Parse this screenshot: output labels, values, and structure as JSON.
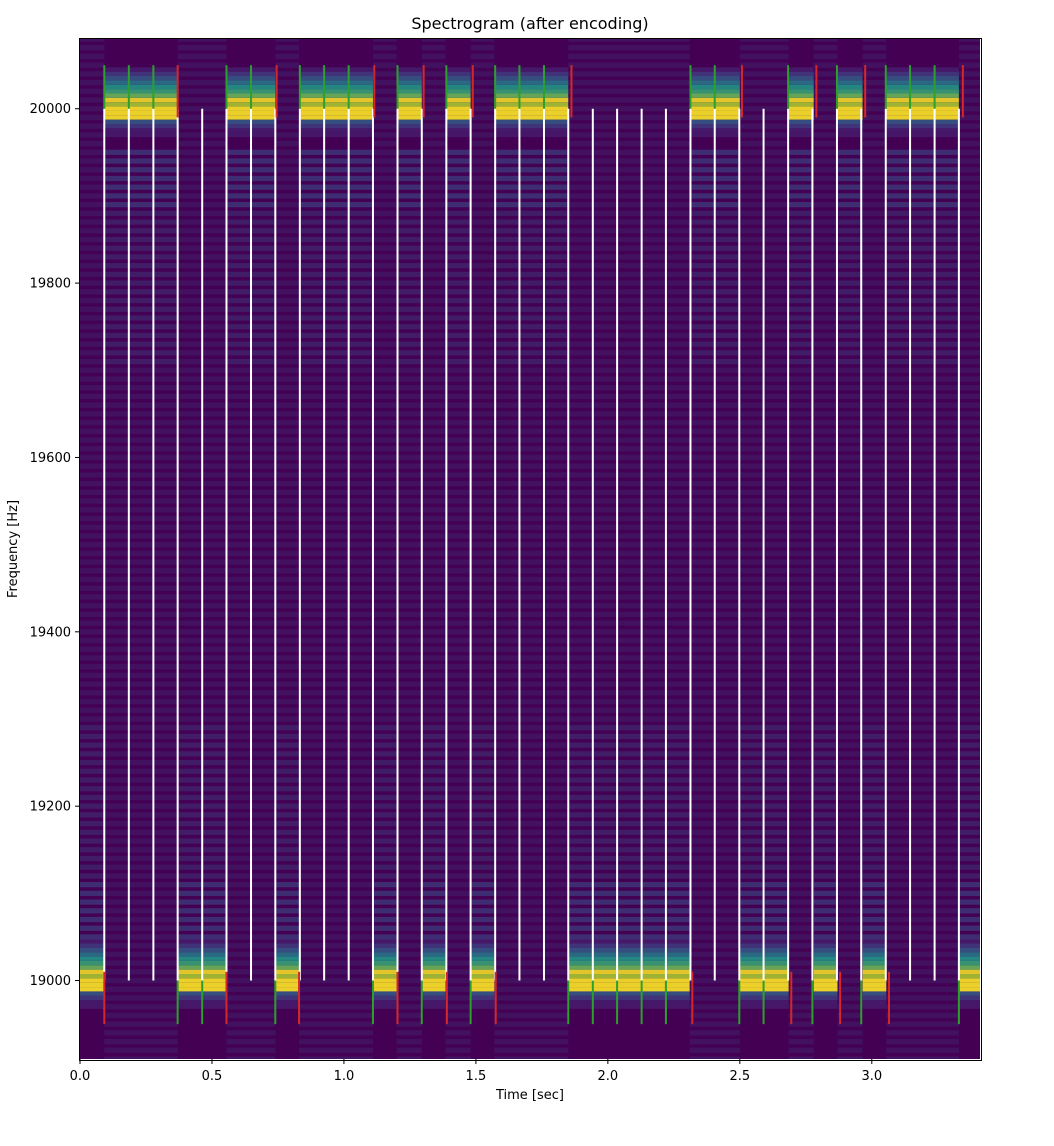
{
  "chart_data": {
    "type": "heatmap",
    "title": "Spectrogram (after encoding)",
    "xlabel": "Time [sec]",
    "ylabel": "Frequency [Hz]",
    "xlim": [
      0.0,
      3.41
    ],
    "ylim": [
      18910,
      20080
    ],
    "x_ticks": [
      0.0,
      0.5,
      1.0,
      1.5,
      2.0,
      2.5,
      3.0
    ],
    "x_tick_labels": [
      "0.0",
      "0.5",
      "1.0",
      "1.5",
      "2.0",
      "2.5",
      "3.0"
    ],
    "y_ticks": [
      19000,
      19200,
      19400,
      19600,
      19800,
      20000
    ],
    "y_tick_labels": [
      "19000",
      "19200",
      "19400",
      "19600",
      "19800",
      "20000"
    ],
    "grid": false,
    "colormap": "viridis",
    "background_color": "#440154",
    "symbols": [
      {
        "start": 0.0,
        "end": 0.092,
        "tone_hz": 19000
      },
      {
        "start": 0.092,
        "end": 0.37,
        "tone_hz": 20000
      },
      {
        "start": 0.37,
        "end": 0.555,
        "tone_hz": 19000
      },
      {
        "start": 0.555,
        "end": 0.74,
        "tone_hz": 20000
      },
      {
        "start": 0.74,
        "end": 0.83,
        "tone_hz": 19000
      },
      {
        "start": 0.83,
        "end": 1.11,
        "tone_hz": 20000
      },
      {
        "start": 1.11,
        "end": 1.2,
        "tone_hz": 19000
      },
      {
        "start": 1.2,
        "end": 1.295,
        "tone_hz": 20000
      },
      {
        "start": 1.295,
        "end": 1.385,
        "tone_hz": 19000
      },
      {
        "start": 1.385,
        "end": 1.48,
        "tone_hz": 20000
      },
      {
        "start": 1.48,
        "end": 1.57,
        "tone_hz": 19000
      },
      {
        "start": 1.57,
        "end": 1.85,
        "tone_hz": 20000
      },
      {
        "start": 1.85,
        "end": 2.31,
        "tone_hz": 19000
      },
      {
        "start": 2.31,
        "end": 2.5,
        "tone_hz": 20000
      },
      {
        "start": 2.5,
        "end": 2.685,
        "tone_hz": 19000
      },
      {
        "start": 2.685,
        "end": 2.78,
        "tone_hz": 20000
      },
      {
        "start": 2.78,
        "end": 2.87,
        "tone_hz": 19000
      },
      {
        "start": 2.87,
        "end": 2.965,
        "tone_hz": 20000
      },
      {
        "start": 2.965,
        "end": 3.055,
        "tone_hz": 19000
      },
      {
        "start": 3.055,
        "end": 3.33,
        "tone_hz": 20000
      },
      {
        "start": 3.33,
        "end": 3.41,
        "tone_hz": 19000
      }
    ],
    "white_markers": {
      "color": "#ffffff",
      "x": [
        0.092,
        0.185,
        0.278,
        0.37,
        0.463,
        0.555,
        0.648,
        0.74,
        0.833,
        0.925,
        1.018,
        1.11,
        1.203,
        1.295,
        1.388,
        1.48,
        1.573,
        1.665,
        1.758,
        1.85,
        1.943,
        2.035,
        2.128,
        2.22,
        2.313,
        2.405,
        2.498,
        2.59,
        2.683,
        2.775,
        2.868,
        2.96,
        3.053,
        3.145,
        3.238,
        3.33
      ],
      "y_range": [
        19000,
        20000
      ]
    },
    "green_markers": {
      "color": "#2ca02c",
      "upper": {
        "y_range": [
          20000,
          20050
        ],
        "x": [
          0.092,
          0.185,
          0.278,
          0.555,
          0.648,
          0.833,
          0.925,
          1.018,
          1.203,
          1.388,
          1.573,
          1.665,
          1.758,
          2.313,
          2.405,
          2.683,
          2.868,
          3.053,
          3.145,
          3.238
        ]
      },
      "lower": {
        "y_range": [
          18950,
          19000
        ],
        "x": [
          0.37,
          0.463,
          0.74,
          1.11,
          1.295,
          1.48,
          1.85,
          1.943,
          2.035,
          2.128,
          2.22,
          2.498,
          2.59,
          2.775,
          2.96,
          3.33
        ]
      }
    },
    "red_markers": {
      "color": "#d62728",
      "upper": {
        "y_range": [
          19990,
          20050
        ],
        "x": [
          0.37,
          0.745,
          1.115,
          1.302,
          1.488,
          1.862,
          2.508,
          2.79,
          2.975,
          3.345
        ]
      },
      "lower": {
        "y_range": [
          18950,
          19010
        ],
        "x": [
          0.092,
          0.555,
          0.83,
          1.203,
          1.39,
          1.575,
          2.32,
          2.695,
          2.88,
          3.065
        ]
      }
    }
  }
}
